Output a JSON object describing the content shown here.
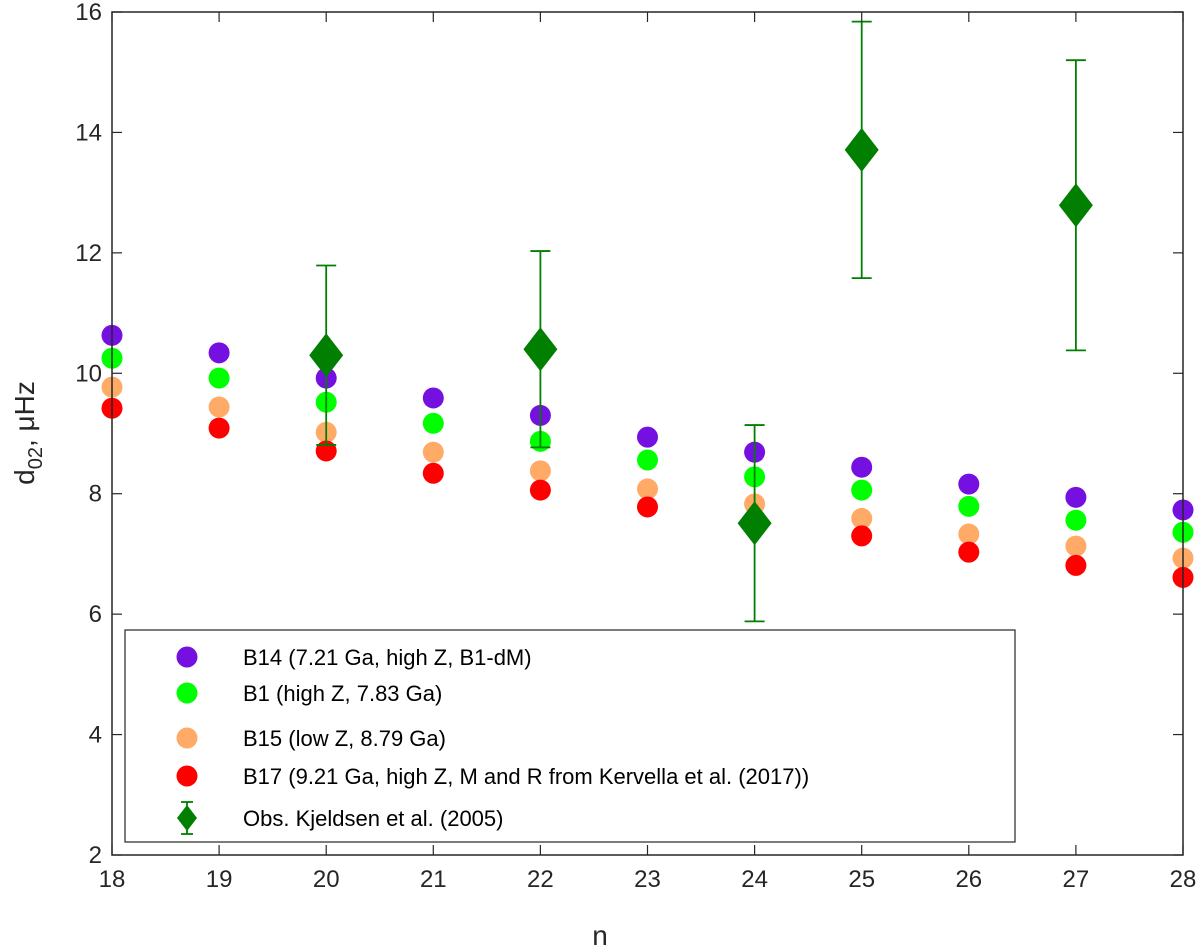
{
  "chart_data": {
    "type": "scatter",
    "xlabel": "n",
    "ylabel": "d",
    "ylabel_sub": "02",
    "ylabel_unit": ", μHz",
    "xlim": [
      18,
      28
    ],
    "ylim": [
      2,
      16
    ],
    "xticks": [
      18,
      19,
      20,
      21,
      22,
      23,
      24,
      25,
      26,
      27,
      28
    ],
    "yticks": [
      2,
      4,
      6,
      8,
      10,
      12,
      14,
      16
    ],
    "grid": false,
    "legend_position": "bottom-left",
    "series": [
      {
        "name": "B14 (7.21 Ga, high Z, B1-dM)",
        "color": "#7511e0",
        "marker": "circle",
        "x": [
          18,
          19,
          20,
          21,
          22,
          23,
          24,
          25,
          26,
          27,
          28
        ],
        "y": [
          10.63,
          10.34,
          9.92,
          9.59,
          9.3,
          8.94,
          8.69,
          8.44,
          8.16,
          7.94,
          7.73
        ]
      },
      {
        "name": "B1 (high Z, 7.83 Ga)",
        "color": "#00ff00",
        "marker": "circle",
        "x": [
          18,
          19,
          20,
          21,
          22,
          23,
          24,
          25,
          26,
          27,
          28
        ],
        "y": [
          10.25,
          9.92,
          9.52,
          9.17,
          8.87,
          8.56,
          8.28,
          8.06,
          7.79,
          7.56,
          7.36
        ]
      },
      {
        "name": "B15 (low Z, 8.79 Ga)",
        "color": "#ffaa66",
        "marker": "circle",
        "x": [
          18,
          19,
          20,
          21,
          22,
          23,
          24,
          25,
          26,
          27,
          28
        ],
        "y": [
          9.77,
          9.44,
          9.02,
          8.69,
          8.38,
          8.08,
          7.83,
          7.59,
          7.33,
          7.13,
          6.93
        ]
      },
      {
        "name": "B17 (9.21 Ga, high Z, M and R from Kervella et al. (2017))",
        "color": "#ff0000",
        "marker": "circle",
        "x": [
          18,
          19,
          20,
          21,
          22,
          23,
          24,
          25,
          26,
          27,
          28
        ],
        "y": [
          9.42,
          9.09,
          8.71,
          8.34,
          8.06,
          7.78,
          7.55,
          7.3,
          7.03,
          6.81,
          6.61
        ]
      },
      {
        "name": "Obs. Kjeldsen et al. (2005)",
        "color": "#007f00",
        "marker": "diamond",
        "x": [
          20,
          22,
          24,
          25,
          27
        ],
        "y": [
          10.3,
          10.4,
          7.51,
          13.71,
          12.79
        ],
        "err": [
          1.49,
          1.63,
          1.63,
          2.13,
          2.41
        ]
      }
    ]
  }
}
